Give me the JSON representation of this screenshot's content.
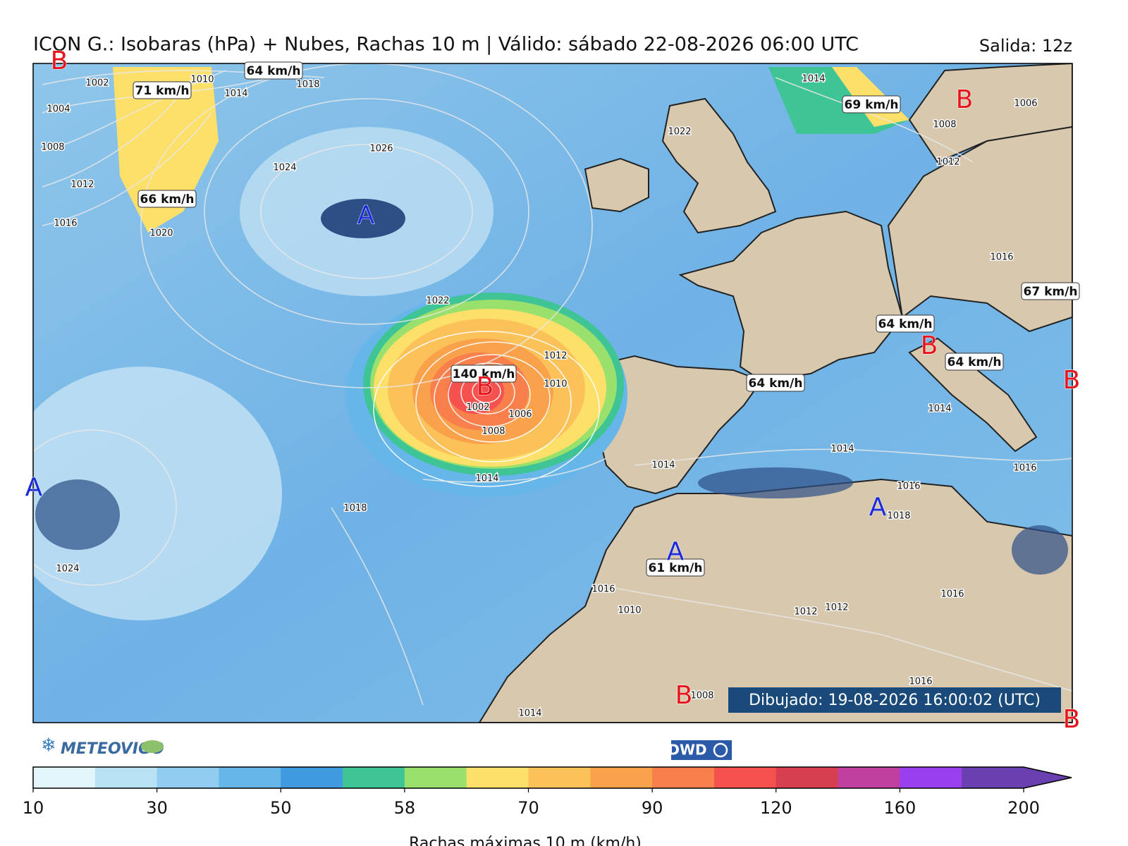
{
  "header": {
    "title": "ICON G.: Isobaras (hPa) + Nubes, Rachas 10 m | Válido: sábado 22-08-2026 06:00 UTC",
    "run": "Salida: 12z"
  },
  "map": {
    "gust_labels": [
      "71 km/h",
      "64 km/h",
      "66 km/h",
      "69 km/h",
      "67 km/h",
      "64 km/h",
      "64 km/h",
      "140 km/h",
      "64 km/h",
      "61 km/h"
    ],
    "centers": [
      {
        "label": "B",
        "color": "#e8141c"
      },
      {
        "label": "A",
        "color": "#1c2ad8"
      },
      {
        "label": "B",
        "color": "#e8141c"
      },
      {
        "label": "B",
        "color": "#e8141c"
      },
      {
        "label": "B",
        "color": "#e8141c"
      },
      {
        "label": "B",
        "color": "#e8141c"
      },
      {
        "label": "A",
        "color": "#1c2ad8"
      },
      {
        "label": "A",
        "color": "#1c2ad8"
      },
      {
        "label": "A",
        "color": "#1c2ad8"
      },
      {
        "label": "B",
        "color": "#e8141c"
      },
      {
        "label": "B",
        "color": "#e8141c"
      }
    ],
    "isobar_labels": [
      1002,
      1004,
      1008,
      1012,
      1016,
      1020,
      1010,
      1014,
      1018,
      1026,
      1024,
      1022,
      1014,
      1006,
      1008,
      1012,
      1016,
      1022,
      1012,
      1010,
      1002,
      1006,
      1008,
      1014,
      1018,
      1024,
      1014,
      1014,
      1016,
      1018,
      1016,
      1014,
      1016,
      1010,
      1012,
      1012,
      1016,
      1016,
      1008,
      1014
    ]
  },
  "footer": {
    "drawn": "Dibujado: 19-08-2026 16:00:02 (UTC)",
    "logo_left": "METEOVIGO",
    "logo_right": "DWD"
  },
  "colorbar": {
    "ticks": [
      10,
      30,
      50,
      58,
      70,
      90,
      120,
      160,
      200
    ],
    "colors": [
      "#e1f5fb",
      "#b9e3f5",
      "#90cdf0",
      "#67b6ea",
      "#3f9ae0",
      "#3fc495",
      "#9ae06c",
      "#fde06a",
      "#fcc25a",
      "#f9a24b",
      "#f9804c",
      "#f5514e",
      "#d6404e",
      "#c040a0",
      "#9a3ff0",
      "#6a3fb0"
    ],
    "label": "Rachas máximas 10 m (km/h)"
  }
}
